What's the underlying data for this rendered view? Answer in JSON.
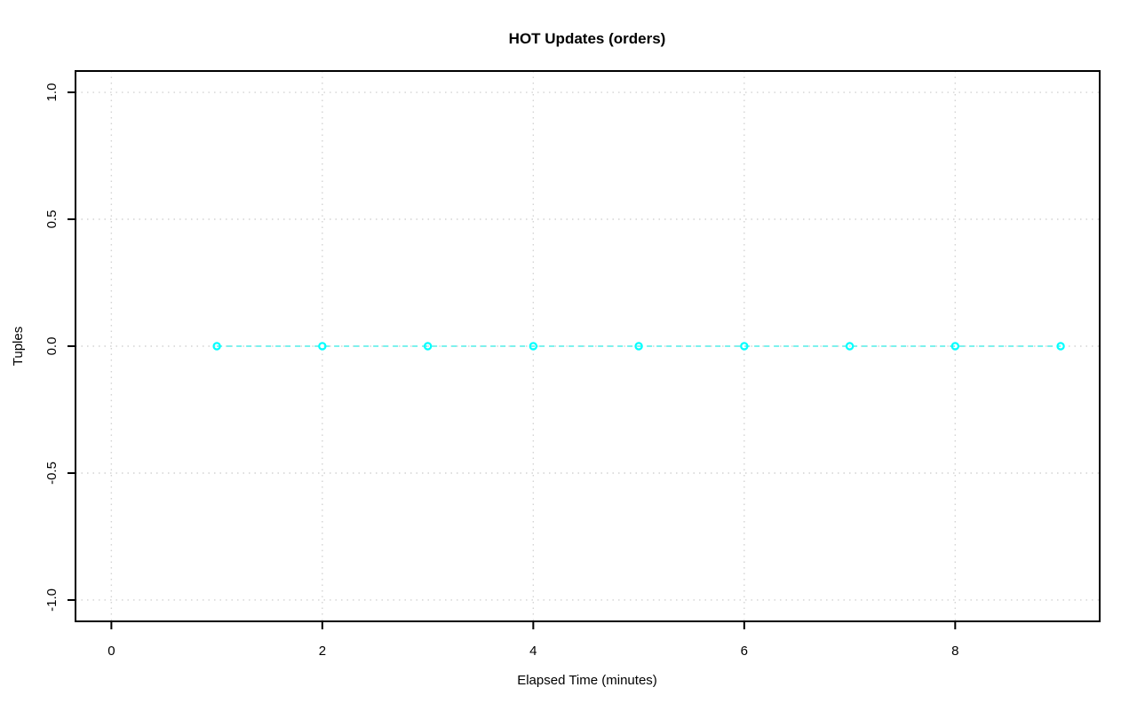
{
  "chart_data": {
    "type": "line",
    "title": "HOT Updates (orders)",
    "xlabel": "Elapsed Time (minutes)",
    "ylabel": "Tuples",
    "x": [
      1,
      2,
      3,
      4,
      5,
      6,
      7,
      8,
      9
    ],
    "y": [
      0,
      0,
      0,
      0,
      0,
      0,
      0,
      0,
      0
    ],
    "xticks": [
      0,
      2,
      4,
      6,
      8
    ],
    "xtick_labels": [
      "0",
      "2",
      "4",
      "6",
      "8"
    ],
    "yticks": [
      1.0,
      0.5,
      0.0,
      -0.5,
      -1.0
    ],
    "ytick_labels": [
      "1.0",
      "0.5",
      "0.0",
      "-0.5",
      "-1.0"
    ],
    "xlim": [
      -0.34,
      9.37
    ],
    "ylim": [
      -1.084,
      1.084
    ],
    "grid": true,
    "grid_style": "dotted",
    "line_style": "dashed",
    "marker": "open-circle",
    "legend": "none",
    "colors": {
      "series": "#00FFFF",
      "series_line": "#7DF2EE",
      "grid": "#D3D3D3",
      "axis": "#000000",
      "background": "#FFFFFF"
    }
  }
}
